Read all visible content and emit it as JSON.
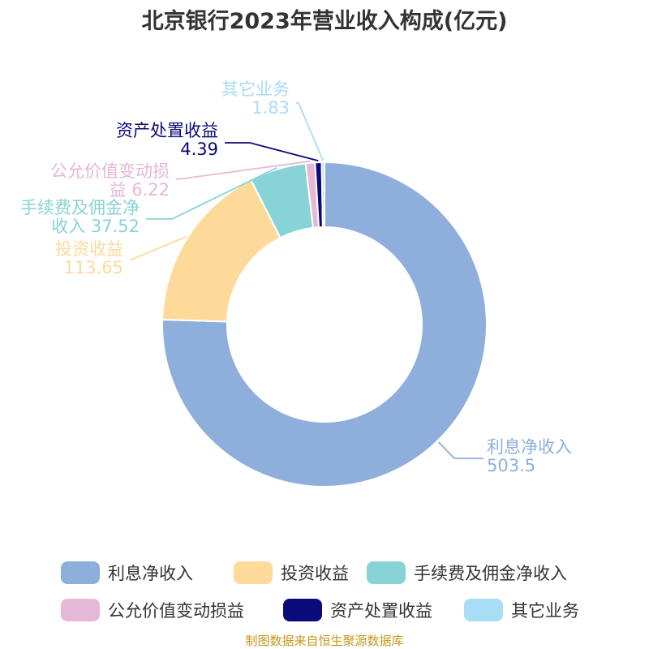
{
  "chart_data": {
    "type": "pie",
    "variant": "donut",
    "title": "北京银行2023年营业收入构成(亿元)",
    "unit": "亿元",
    "slices": [
      {
        "name": "利息净收入",
        "label": [
          "利息净收入",
          "503.5"
        ],
        "value": 503.5,
        "color": "#8eaedb"
      },
      {
        "name": "投资收益",
        "label": [
          "投资收益",
          "113.65"
        ],
        "value": 113.65,
        "color": "#fdd99a"
      },
      {
        "name": "手续费及佣金净收入",
        "label": [
          "手续费及佣金净",
          "收入 37.52"
        ],
        "value": 37.52,
        "color": "#87d3d7"
      },
      {
        "name": "公允价值变动损益",
        "label": [
          "公允价值变动损",
          "益 6.22"
        ],
        "value": 6.22,
        "color": "#e5b8d8"
      },
      {
        "name": "资产处置收益",
        "label": [
          "资产处置收益",
          "4.39"
        ],
        "value": 4.39,
        "color": "#0b0a7a"
      },
      {
        "name": "其它业务",
        "label": [
          "其它业务",
          "1.83"
        ],
        "value": 1.83,
        "color": "#a8ddf5"
      }
    ],
    "legend": [
      "利息净收入",
      "投资收益",
      "手续费及佣金净收入",
      "公允价值变动损益",
      "资产处置收益",
      "其它业务"
    ],
    "legend_position": "bottom",
    "source": "制图数据来自恒生聚源数据库"
  }
}
